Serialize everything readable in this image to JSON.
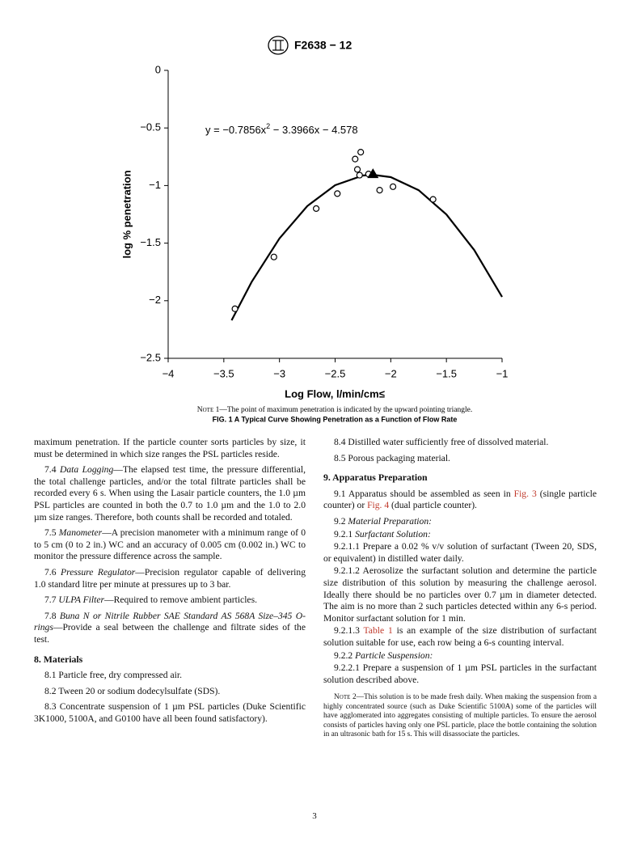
{
  "header": {
    "designation": "F2638 − 12"
  },
  "chart_data": {
    "type": "scatter",
    "equation": [
      "y = −0.7856x",
      "2",
      " − 3.3966x − 4.578"
    ],
    "xlabel": "Log Flow, l/min/cm≤",
    "ylabel": "log % penetration",
    "xlim": [
      -4,
      -1
    ],
    "ylim": [
      -2.5,
      0
    ],
    "xticks": [
      {
        "value": -4,
        "label": "−4"
      },
      {
        "value": -3.5,
        "label": "−3.5"
      },
      {
        "value": -3,
        "label": "−3"
      },
      {
        "value": -2.5,
        "label": "−2.5"
      },
      {
        "value": -2,
        "label": "−2"
      },
      {
        "value": -1.5,
        "label": "−1.5"
      },
      {
        "value": -1,
        "label": "−1"
      }
    ],
    "yticks": [
      0,
      {
        "value": -0.5,
        "label": "−0.5"
      },
      {
        "value": -1,
        "label": "−1"
      },
      {
        "value": -1.5,
        "label": "−1.5"
      },
      {
        "value": -2,
        "label": "−2"
      },
      {
        "value": -2.5,
        "label": "−2.5"
      }
    ],
    "points": {
      "color": "#000000",
      "x": [
        -3.4,
        -3.05,
        -2.67,
        -2.48,
        -2.32,
        -2.3,
        -2.28,
        -2.27,
        -2.2,
        -2.1,
        -1.98,
        -1.62
      ],
      "y": [
        -2.07,
        -1.62,
        -1.2,
        -1.07,
        -0.77,
        -0.86,
        -0.91,
        -0.71,
        -0.9,
        -1.04,
        -1.01,
        -1.12
      ]
    },
    "max_point": {
      "color": "#000000",
      "x": -2.16,
      "y": -0.9
    },
    "fit": {
      "color": "#000000",
      "x": [
        -3.43,
        -3.25,
        -3,
        -2.75,
        -2.5,
        -2.25,
        -2.16,
        -2,
        -1.75,
        -1.5,
        -1.25,
        -1
      ],
      "y": [
        -2.17,
        -1.837,
        -1.459,
        -1.178,
        -0.997,
        -0.913,
        -0.907,
        -0.927,
        -1.04,
        -1.251,
        -1.56,
        -1.967
      ]
    }
  },
  "figure": {
    "note_label": "Note 1",
    "note_text": "—The point of maximum penetration is indicated by the upward pointing triangle.",
    "caption": "FIG. 1 A Typical Curve Showing Penetration as a Function of Flow Rate"
  },
  "columns": [
    [
      {
        "runs": [
          {
            "text": "maximum penetration. If the particle counter sorts particles by size, it must be determined in which size ranges the PSL particles reside."
          }
        ],
        "continued": true
      },
      {
        "num": "7.4",
        "runs": [
          {
            "text": "Data Logging",
            "style": "italic"
          },
          {
            "text": "—The elapsed test time, the pressure differential, the total challenge particles, and/or the total filtrate particles shall be recorded every 6 s. When using the Lasair particle counters, the 1.0 µm PSL particles are counted in both the 0.7 to 1.0 µm and the 1.0 to 2.0 µm size ranges. Therefore, both counts shall be recorded and totaled."
          }
        ]
      },
      {
        "num": "7.5",
        "runs": [
          {
            "text": "Manometer",
            "style": "italic"
          },
          {
            "text": "—A precision manometer with a minimum range of 0 to 5 cm (0 to 2 in.) WC and an accuracy of 0.005 cm (0.002 in.) WC to monitor the pressure difference across the sample."
          }
        ]
      },
      {
        "num": "7.6",
        "runs": [
          {
            "text": "Pressure Regulator",
            "style": "italic"
          },
          {
            "text": "—Precision regulator capable of delivering 1.0 standard litre per minute at pressures up to 3 bar."
          }
        ]
      },
      {
        "num": "7.7",
        "runs": [
          {
            "text": "ULPA Filter",
            "style": "italic"
          },
          {
            "text": "—Required to remove ambient particles."
          }
        ]
      },
      {
        "num": "7.8",
        "runs": [
          {
            "text": "Buna N or Nitrile Rubber SAE Standard AS 568A Size–345 O-rings",
            "style": "italic"
          },
          {
            "text": "—Provide a seal between the challenge and filtrate sides of the test."
          }
        ]
      },
      {
        "heading": "8. Materials"
      },
      {
        "num": "8.1",
        "runs": [
          {
            "text": "Particle free, dry compressed air."
          }
        ]
      },
      {
        "num": "8.2",
        "runs": [
          {
            "text": "Tween 20 or sodium dodecylsulfate (SDS)."
          }
        ]
      },
      {
        "num": "8.3",
        "runs": [
          {
            "text": "Concentrate suspension of 1 µm PSL particles (Duke Scientific 3K1000, 5100A, and G0100 have all been found satisfactory)."
          }
        ]
      }
    ],
    [
      {
        "num": "8.4",
        "runs": [
          {
            "text": "Distilled water sufficiently free of dissolved material."
          }
        ]
      },
      {
        "num": "8.5",
        "runs": [
          {
            "text": "Porous packaging material."
          }
        ]
      },
      {
        "heading": "9. Apparatus Preparation"
      },
      {
        "num": "9.1",
        "runs": [
          {
            "text": "Apparatus should be assembled as seen in "
          },
          {
            "text": "Fig. 3",
            "style": "link"
          },
          {
            "text": " (single particle counter) or "
          },
          {
            "text": "Fig. 4",
            "style": "link"
          },
          {
            "text": " (dual particle counter)."
          }
        ]
      },
      {
        "num": "9.2",
        "tight": true,
        "runs": [
          {
            "text": "Material Preparation:",
            "style": "italic"
          }
        ]
      },
      {
        "num": "9.2.1",
        "tight": true,
        "runs": [
          {
            "text": "Surfactant Solution:",
            "style": "italic"
          }
        ]
      },
      {
        "num": "9.2.1.1",
        "tight": true,
        "runs": [
          {
            "text": "Prepare a 0.02 % v/v solution of surfactant (Tween 20, SDS, or equivalent) in distilled water daily."
          }
        ]
      },
      {
        "num": "9.2.1.2",
        "tight": true,
        "runs": [
          {
            "text": "Aerosolize the surfactant solution and determine the particle size distribution of this solution by measuring the challenge aerosol. Ideally there should be no particles over 0.7 µm in diameter detected. The aim is no more than 2 such particles detected within any 6-s period. Monitor surfactant solution for 1 min."
          }
        ]
      },
      {
        "num": "9.2.1.3",
        "tight": true,
        "runs": [
          {
            "text": "Table 1",
            "style": "link"
          },
          {
            "text": " is an example of the size distribution of surfactant solution suitable for use, each row being a 6-s counting interval."
          }
        ]
      },
      {
        "num": "9.2.2",
        "tight": true,
        "runs": [
          {
            "text": "Particle Suspension:",
            "style": "italic"
          }
        ]
      },
      {
        "num": "9.2.2.1",
        "tight": true,
        "runs": [
          {
            "text": "Prepare a suspension of 1 µm PSL particles in the surfactant solution described above."
          }
        ]
      },
      {
        "note": "Note 2",
        "runs": [
          {
            "text": "—This solution is to be made fresh daily. When making the suspension from a highly concentrated source (such as Duke Scientific 5100A) some of the particles will have agglomerated into aggregates consisting of multiple particles. To ensure the aerosol consists of particles having only one PSL particle, place the bottle containing the solution in an ultrasonic bath for 15 s. This will disassociate the particles."
          }
        ]
      }
    ]
  ],
  "footer": {
    "page": "3"
  }
}
